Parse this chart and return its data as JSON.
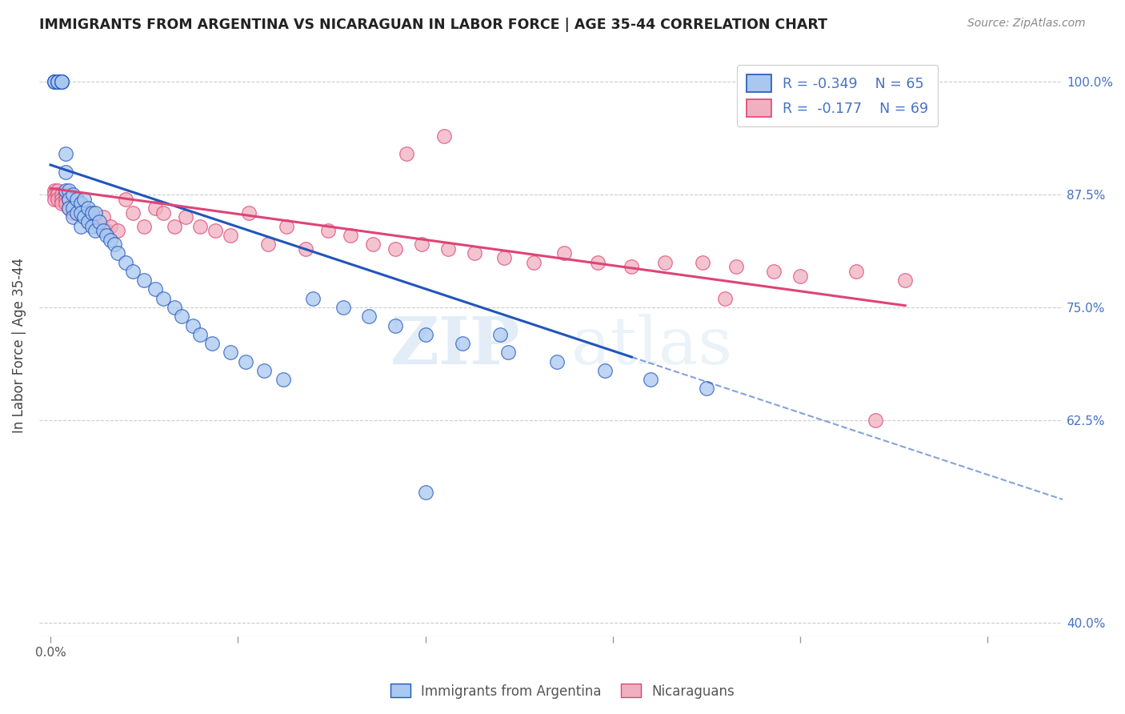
{
  "title": "IMMIGRANTS FROM ARGENTINA VS NICARAGUAN IN LABOR FORCE | AGE 35-44 CORRELATION CHART",
  "source": "Source: ZipAtlas.com",
  "ylabel": "In Labor Force | Age 35-44",
  "xlabel": "",
  "legend_label1": "Immigrants from Argentina",
  "legend_label2": "Nicaraguans",
  "r1": -0.349,
  "n1": 65,
  "r2": -0.177,
  "n2": 69,
  "color1": "#a8c8f0",
  "color2": "#f0b0c0",
  "line_color1": "#2255bb",
  "line_color2": "#dd4477",
  "xlim": [
    -0.003,
    0.27
  ],
  "ylim": [
    0.385,
    1.03
  ],
  "yticks": [
    0.4,
    0.625,
    0.75,
    0.875,
    1.0
  ],
  "ytick_labels": [
    "40.0%",
    "62.5%",
    "75.0%",
    "87.5%",
    "100.0%"
  ],
  "xtick_val": 0.0,
  "xtick_label": "0.0%",
  "background_color": "#ffffff",
  "watermark_zip": "ZIP",
  "watermark_atlas": "atlas",
  "argentina_x": [
    0.001,
    0.001,
    0.001,
    0.002,
    0.002,
    0.002,
    0.003,
    0.003,
    0.003,
    0.003,
    0.004,
    0.004,
    0.004,
    0.005,
    0.005,
    0.005,
    0.006,
    0.006,
    0.006,
    0.007,
    0.007,
    0.008,
    0.008,
    0.008,
    0.009,
    0.009,
    0.01,
    0.01,
    0.011,
    0.011,
    0.012,
    0.012,
    0.013,
    0.014,
    0.015,
    0.016,
    0.017,
    0.018,
    0.02,
    0.022,
    0.025,
    0.028,
    0.03,
    0.033,
    0.035,
    0.038,
    0.04,
    0.043,
    0.048,
    0.052,
    0.057,
    0.062,
    0.07,
    0.078,
    0.085,
    0.092,
    0.1,
    0.11,
    0.122,
    0.135,
    0.148,
    0.16,
    0.175,
    0.12,
    0.1
  ],
  "argentina_y": [
    1.0,
    1.0,
    1.0,
    1.0,
    1.0,
    1.0,
    1.0,
    1.0,
    1.0,
    1.0,
    0.92,
    0.9,
    0.88,
    0.88,
    0.87,
    0.86,
    0.875,
    0.86,
    0.85,
    0.87,
    0.855,
    0.865,
    0.855,
    0.84,
    0.87,
    0.85,
    0.86,
    0.845,
    0.855,
    0.84,
    0.855,
    0.835,
    0.845,
    0.835,
    0.83,
    0.825,
    0.82,
    0.81,
    0.8,
    0.79,
    0.78,
    0.77,
    0.76,
    0.75,
    0.74,
    0.73,
    0.72,
    0.71,
    0.7,
    0.69,
    0.68,
    0.67,
    0.76,
    0.75,
    0.74,
    0.73,
    0.72,
    0.71,
    0.7,
    0.69,
    0.68,
    0.67,
    0.66,
    0.72,
    0.545
  ],
  "nicaragua_x": [
    0.001,
    0.001,
    0.001,
    0.002,
    0.002,
    0.002,
    0.003,
    0.003,
    0.003,
    0.004,
    0.004,
    0.004,
    0.005,
    0.005,
    0.005,
    0.006,
    0.006,
    0.007,
    0.007,
    0.008,
    0.008,
    0.009,
    0.009,
    0.01,
    0.01,
    0.011,
    0.012,
    0.013,
    0.014,
    0.015,
    0.016,
    0.018,
    0.02,
    0.022,
    0.025,
    0.028,
    0.03,
    0.033,
    0.036,
    0.04,
    0.044,
    0.048,
    0.053,
    0.058,
    0.063,
    0.068,
    0.074,
    0.08,
    0.086,
    0.092,
    0.099,
    0.106,
    0.113,
    0.121,
    0.129,
    0.137,
    0.146,
    0.155,
    0.164,
    0.174,
    0.183,
    0.193,
    0.2,
    0.215,
    0.228,
    0.095,
    0.105,
    0.18,
    0.22
  ],
  "nicaragua_y": [
    0.88,
    0.875,
    0.87,
    0.88,
    0.875,
    0.87,
    0.875,
    0.87,
    0.865,
    0.875,
    0.87,
    0.865,
    0.875,
    0.87,
    0.86,
    0.865,
    0.855,
    0.87,
    0.855,
    0.86,
    0.855,
    0.86,
    0.85,
    0.855,
    0.845,
    0.85,
    0.845,
    0.84,
    0.85,
    0.835,
    0.84,
    0.835,
    0.87,
    0.855,
    0.84,
    0.86,
    0.855,
    0.84,
    0.85,
    0.84,
    0.835,
    0.83,
    0.855,
    0.82,
    0.84,
    0.815,
    0.835,
    0.83,
    0.82,
    0.815,
    0.82,
    0.815,
    0.81,
    0.805,
    0.8,
    0.81,
    0.8,
    0.795,
    0.8,
    0.8,
    0.795,
    0.79,
    0.785,
    0.79,
    0.78,
    0.92,
    0.94,
    0.76,
    0.625
  ],
  "arg_line_x0": 0.0,
  "arg_line_y0": 0.908,
  "arg_line_x1": 0.155,
  "arg_line_y1": 0.695,
  "arg_line_x2": 0.27,
  "arg_line_y2": 0.537,
  "nic_line_x0": 0.0,
  "nic_line_y0": 0.882,
  "nic_line_x1": 0.228,
  "nic_line_y1": 0.752
}
